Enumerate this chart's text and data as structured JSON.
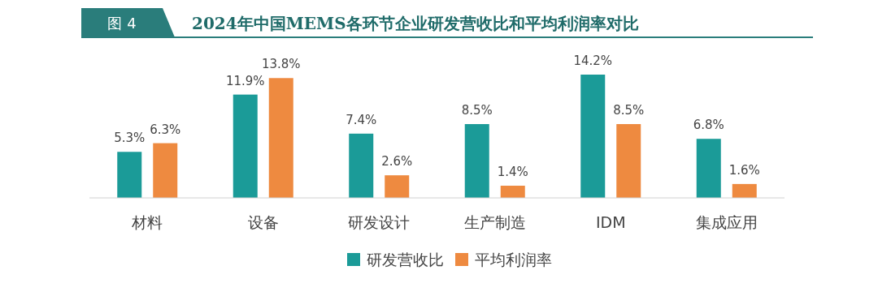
{
  "chart_data": {
    "type": "bar",
    "title": "2024年中国MEMS各环节企业研发营收比和平均利润率对比",
    "annotations": [
      "图 4"
    ],
    "categories": [
      "材料",
      "设备",
      "研发设计",
      "生产制造",
      "IDM",
      "集成应用"
    ],
    "legend": "bottom",
    "series": [
      {
        "name": "研发营收比",
        "color": "#1b9b98",
        "values": [
          5.3,
          11.9,
          7.4,
          8.5,
          14.2,
          6.8
        ],
        "value_labels": [
          "5.3%",
          "11.9%",
          "7.4%",
          "8.5%",
          "14.2%",
          "6.8%"
        ]
      },
      {
        "name": "平均利润率",
        "color": "#ee8a40",
        "values": [
          6.3,
          13.8,
          2.6,
          1.4,
          8.5,
          1.6
        ],
        "value_labels": [
          "6.3%",
          "13.8%",
          "2.6%",
          "1.4%",
          "8.5%",
          "1.6%"
        ]
      }
    ]
  }
}
